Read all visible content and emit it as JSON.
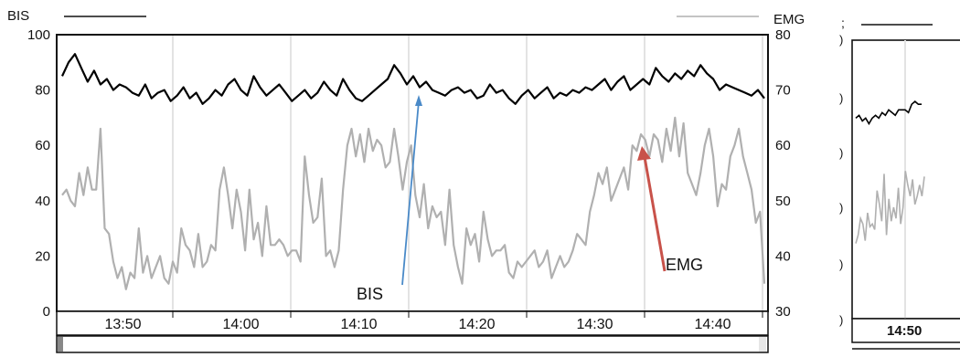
{
  "chart_data": [
    {
      "type": "line",
      "title": "",
      "left_axis": {
        "label": "BIS",
        "ticks": [
          "100",
          "80",
          "60",
          "40",
          "20",
          "0"
        ],
        "ylim": [
          0,
          100
        ]
      },
      "right_axis": {
        "label": "EMG",
        "ticks": [
          "80",
          "70",
          "60",
          "50",
          "40",
          "30"
        ],
        "ylim": [
          30,
          80
        ]
      },
      "x_ticks": [
        "13:50",
        "14:00",
        "14:10",
        "14:20",
        "14:30",
        "14:40"
      ],
      "grid": "vertical",
      "legend": "top",
      "series": [
        {
          "name": "BIS",
          "axis": "left",
          "color": "#000000",
          "values": [
            85,
            90,
            93,
            88,
            83,
            87,
            82,
            84,
            80,
            82,
            81,
            79,
            78,
            82,
            77,
            79,
            80,
            76,
            78,
            81,
            77,
            79,
            75,
            77,
            80,
            78,
            82,
            84,
            80,
            78,
            85,
            81,
            78,
            80,
            82,
            79,
            76,
            78,
            80,
            77,
            79,
            83,
            80,
            78,
            84,
            80,
            77,
            76,
            78,
            80,
            82,
            84,
            89,
            86,
            82,
            85,
            81,
            83,
            80,
            79,
            78,
            80,
            81,
            79,
            80,
            77,
            78,
            82,
            79,
            80,
            77,
            75,
            78,
            80,
            77,
            79,
            81,
            77,
            79,
            78,
            80,
            79,
            81,
            80,
            82,
            84,
            80,
            83,
            85,
            80,
            82,
            84,
            82,
            88,
            85,
            83,
            86,
            84,
            87,
            85,
            89,
            86,
            84,
            80,
            82,
            81,
            80,
            79,
            78,
            80,
            77
          ]
        },
        {
          "name": "EMG",
          "axis": "right",
          "color": "#b0b0b0",
          "values": [
            51,
            52,
            50,
            49,
            55,
            51,
            56,
            52,
            52,
            63,
            45,
            44,
            39,
            36,
            38,
            34,
            37,
            36,
            45,
            37,
            40,
            36,
            38,
            40,
            36,
            35,
            39,
            37,
            45,
            42,
            41,
            38,
            44,
            38,
            39,
            42,
            41,
            52,
            56,
            51,
            45,
            52,
            48,
            41,
            52,
            43,
            46,
            40,
            49,
            42,
            42,
            43,
            42,
            40,
            41,
            41,
            39,
            58,
            51,
            46,
            47,
            54,
            40,
            41,
            38,
            41,
            52,
            60,
            63,
            58,
            62,
            57,
            63,
            59,
            61,
            60,
            56,
            57,
            63,
            58,
            52,
            57,
            60,
            51,
            47,
            53,
            45,
            49,
            47,
            48,
            42,
            52,
            42,
            38,
            35,
            45,
            42,
            44,
            39,
            48,
            43,
            40,
            41,
            41,
            42,
            37,
            36,
            39,
            38,
            39,
            40,
            41,
            38,
            39,
            41,
            36,
            38,
            40,
            38,
            39,
            41,
            44,
            43,
            42,
            48,
            51,
            55,
            53,
            56,
            50,
            52,
            54,
            56,
            52,
            60,
            59,
            62,
            61,
            58,
            62,
            61,
            57,
            63,
            59,
            65,
            58,
            64,
            55,
            53,
            51,
            55,
            60,
            63,
            58,
            49,
            53,
            52,
            58,
            60,
            63,
            58,
            55,
            52,
            46,
            48,
            35
          ]
        }
      ],
      "annotations": [
        {
          "text": "BIS",
          "color": "#4a8ac8"
        },
        {
          "text": "EMG",
          "color": "#c8524a"
        }
      ]
    },
    {
      "type": "line",
      "title": "",
      "x_ticks": [
        "14:50"
      ],
      "series": [
        {
          "name": "",
          "color": "#000000",
          "values": [
            72,
            73,
            71,
            72,
            70,
            72,
            73,
            72,
            74,
            73,
            75,
            74,
            73,
            75,
            75,
            75,
            74,
            77,
            78,
            77,
            77
          ]
        },
        {
          "name": "",
          "color": "#b0b0b0",
          "values": [
            27,
            30,
            36,
            34,
            28,
            38,
            33,
            34,
            32,
            46,
            41,
            35,
            52,
            30,
            43,
            35,
            40,
            36,
            47,
            34,
            40,
            53,
            48,
            44,
            50,
            41,
            44,
            48,
            44,
            51
          ]
        }
      ]
    }
  ]
}
